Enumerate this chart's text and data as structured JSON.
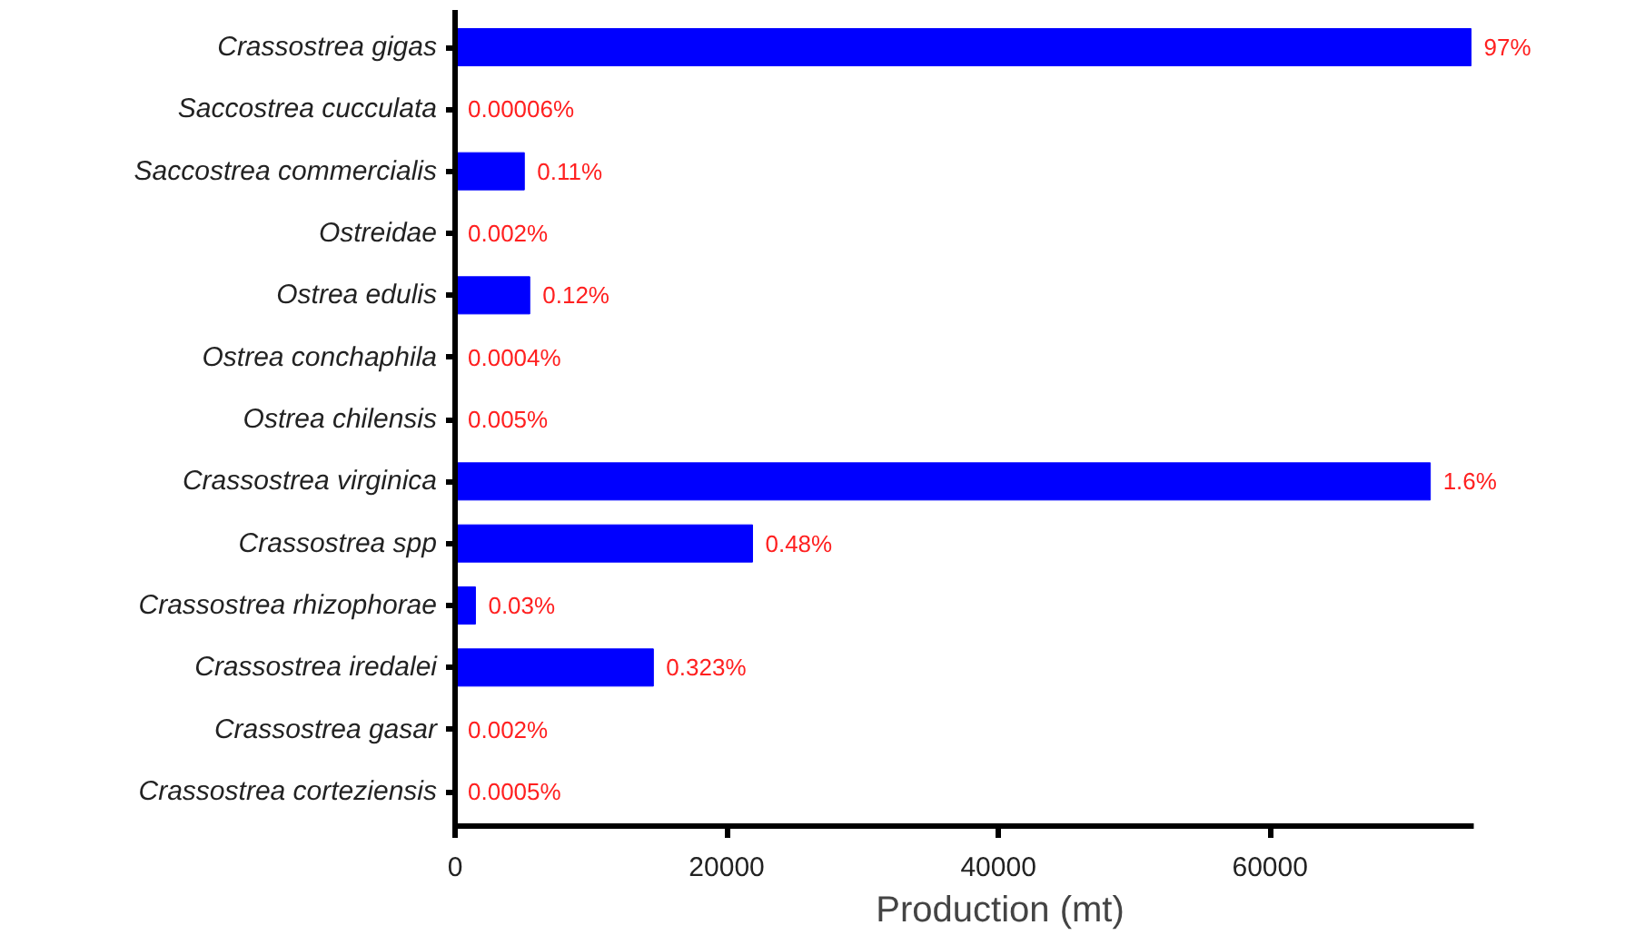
{
  "chart_data": {
    "type": "bar",
    "orientation": "horizontal",
    "xlabel": "Production (mt)",
    "categories": [
      "Crassostrea gigas",
      "Saccostrea cucculata",
      "Saccostrea commercialis",
      "Ostreidae",
      "Ostrea edulis",
      "Ostrea conchaphila",
      "Ostrea chilensis",
      "Crassostrea virginica",
      "Crassostrea spp",
      "Crassostrea rhizophorae",
      "Crassostrea iredalei",
      "Crassostrea gasar",
      "Crassostrea corteziensis"
    ],
    "values": [
      74800,
      0,
      5100,
      0,
      5500,
      0,
      0,
      71800,
      21900,
      1500,
      14600,
      0,
      0
    ],
    "annotations": [
      {
        "text": "97%",
        "x": 74800,
        "y": "Crassostrea gigas"
      },
      {
        "text": "0.00006%",
        "x": 0,
        "y": "Saccostrea cucculata"
      },
      {
        "text": "0.11%",
        "x": 5100,
        "y": "Saccostrea commercialis"
      },
      {
        "text": "0.002%",
        "x": 0,
        "y": "Ostreidae"
      },
      {
        "text": "0.12%",
        "x": 5500,
        "y": "Ostrea edulis"
      },
      {
        "text": "0.0004%",
        "x": 0,
        "y": "Ostrea conchaphila"
      },
      {
        "text": "0.005%",
        "x": 0,
        "y": "Ostrea chilensis"
      },
      {
        "text": "1.6%",
        "x": 71800,
        "y": "Crassostrea virginica"
      },
      {
        "text": "0.48%",
        "x": 21900,
        "y": "Crassostrea spp"
      },
      {
        "text": "0.03%",
        "x": 1500,
        "y": "Crassostrea rhizophorae"
      },
      {
        "text": "0.323%",
        "x": 14600,
        "y": "Crassostrea iredalei"
      },
      {
        "text": "0.002%",
        "x": 0,
        "y": "Crassostrea gasar"
      },
      {
        "text": "0.0005%",
        "x": 0,
        "y": "Crassostrea corteziensis"
      }
    ],
    "color": "#0000ff",
    "xlim": [
      0,
      75000
    ],
    "xticks": [
      0,
      20000,
      40000,
      60000
    ],
    "grid": false
  }
}
